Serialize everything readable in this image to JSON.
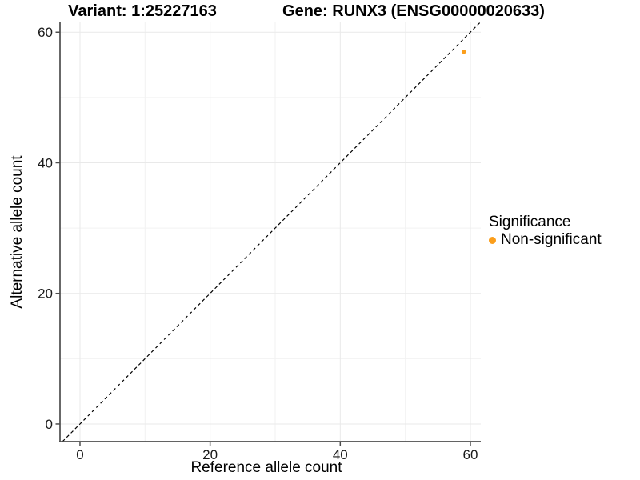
{
  "chart_data": {
    "type": "scatter",
    "titles": {
      "left": "Variant: 1:25227163",
      "right": "Gene: RUNX3 (ENSG00000020633)"
    },
    "xlabel": "Reference allele count",
    "ylabel": "Alternative allele count",
    "xlim": [
      -3.07,
      61.6
    ],
    "ylim": [
      -2.7,
      61.5
    ],
    "xticks": [
      0,
      20,
      40,
      60
    ],
    "yticks": [
      0,
      20,
      40,
      60
    ],
    "xminor": [
      10,
      30,
      50
    ],
    "yminor": [
      10,
      30,
      50
    ],
    "grid": true,
    "reference_line": {
      "type": "identity",
      "slope": 1,
      "intercept": 0,
      "style": "dashed",
      "color": "#000000"
    },
    "series": [
      {
        "name": "Non-significant",
        "color": "#FB9E1B",
        "points": [
          {
            "x": 59,
            "y": 57
          }
        ]
      }
    ],
    "legend": {
      "title": "Significance",
      "position": "right",
      "entries": [
        {
          "label": "Non-significant",
          "color": "#FB9E1B"
        }
      ]
    },
    "colors": {
      "axis_line": "#4d4d4d",
      "tick_mark": "#4d4d4d",
      "grid_major": "#e9e9e9",
      "grid_minor": "#f2f2f2",
      "tick_text": "#1a1a1a",
      "title_text": "#000000"
    }
  }
}
